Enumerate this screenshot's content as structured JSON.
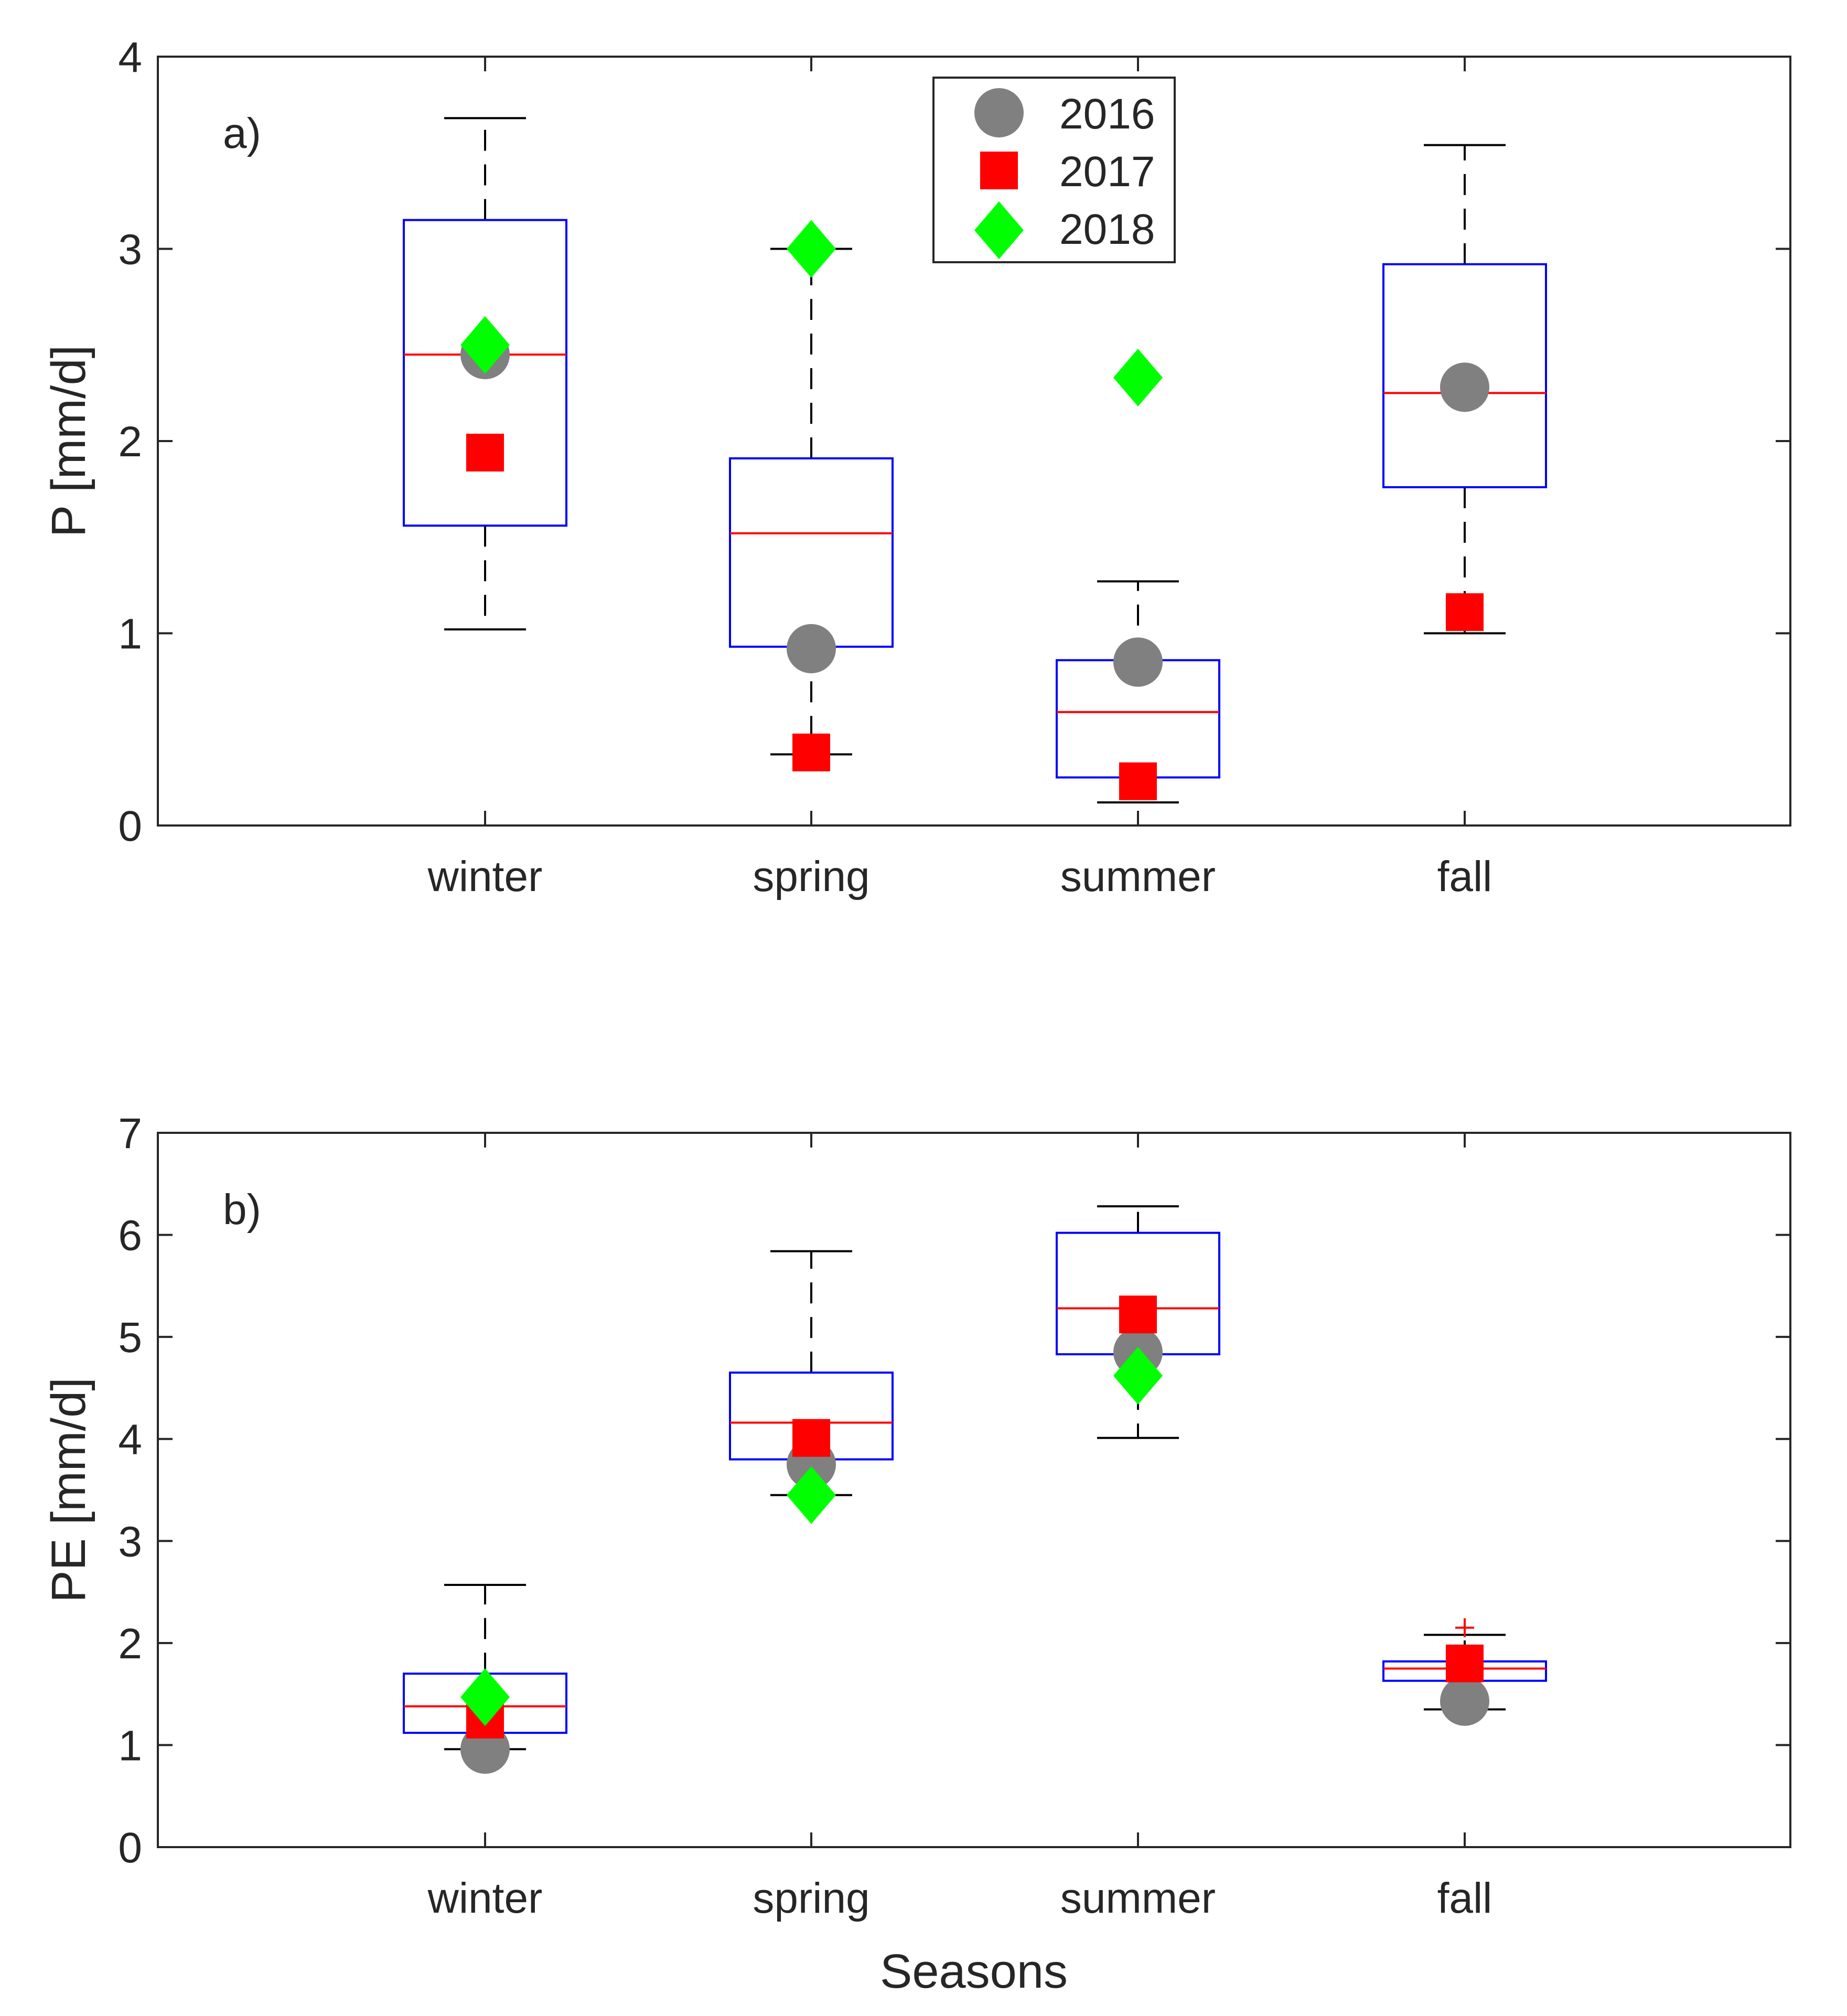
{
  "xlabel": "Seasons",
  "legend": {
    "entries": [
      {
        "name": "2016",
        "marker": "circle",
        "color": "#808080"
      },
      {
        "name": "2017",
        "marker": "square",
        "color": "#ff0000"
      },
      {
        "name": "2018",
        "marker": "diamond",
        "color": "#00ff00"
      }
    ],
    "location": "top-center of panel a"
  },
  "colors": {
    "box": "#0000ff",
    "median": "#ff0000",
    "whisker": "#000000",
    "axis": "#262626"
  },
  "chart_data": [
    {
      "type": "box",
      "panel_label": "a)",
      "ylabel": "P [mm/d]",
      "categories": [
        "winter",
        "spring",
        "summer",
        "fall"
      ],
      "ylim": [
        0,
        4
      ],
      "yticks": [
        "0",
        "1",
        "2",
        "3",
        "4"
      ],
      "boxes": [
        {
          "category": "winter",
          "whisker_low": 1.02,
          "q1": 1.56,
          "median": 2.45,
          "q3": 3.15,
          "whisker_high": 3.68
        },
        {
          "category": "spring",
          "whisker_low": 0.37,
          "q1": 0.93,
          "median": 1.52,
          "q3": 1.91,
          "whisker_high": 3.0
        },
        {
          "category": "summer",
          "whisker_low": 0.12,
          "q1": 0.25,
          "median": 0.59,
          "q3": 0.86,
          "whisker_high": 1.27
        },
        {
          "category": "fall",
          "whisker_low": 1.0,
          "q1": 1.76,
          "median": 2.25,
          "q3": 2.92,
          "whisker_high": 3.54
        }
      ],
      "outliers": [],
      "series": [
        {
          "name": "2016",
          "values": [
            2.45,
            0.92,
            0.85,
            2.28
          ]
        },
        {
          "name": "2017",
          "values": [
            1.94,
            0.38,
            0.23,
            1.11
          ]
        },
        {
          "name": "2018",
          "values": [
            2.5,
            3.0,
            2.33,
            null
          ]
        }
      ]
    },
    {
      "type": "box",
      "panel_label": "b)",
      "ylabel": "PE [mm/d]",
      "categories": [
        "winter",
        "spring",
        "summer",
        "fall"
      ],
      "ylim": [
        0,
        7
      ],
      "yticks": [
        "0",
        "1",
        "2",
        "3",
        "4",
        "5",
        "6",
        "7"
      ],
      "boxes": [
        {
          "category": "winter",
          "whisker_low": 0.96,
          "q1": 1.12,
          "median": 1.38,
          "q3": 1.7,
          "whisker_high": 2.57
        },
        {
          "category": "spring",
          "whisker_low": 3.45,
          "q1": 3.8,
          "median": 4.16,
          "q3": 4.65,
          "whisker_high": 5.84
        },
        {
          "category": "summer",
          "whisker_low": 4.01,
          "q1": 4.83,
          "median": 5.28,
          "q3": 6.02,
          "whisker_high": 6.28
        },
        {
          "category": "fall",
          "whisker_low": 1.35,
          "q1": 1.63,
          "median": 1.75,
          "q3": 1.82,
          "whisker_high": 2.08
        }
      ],
      "outliers": [
        {
          "category": "fall",
          "value": 2.15
        }
      ],
      "series": [
        {
          "name": "2016",
          "values": [
            0.96,
            3.75,
            4.85,
            1.43
          ]
        },
        {
          "name": "2017",
          "values": [
            1.25,
            4.01,
            5.22,
            1.8
          ]
        },
        {
          "name": "2018",
          "values": [
            1.47,
            3.45,
            4.62,
            null
          ]
        }
      ]
    }
  ]
}
